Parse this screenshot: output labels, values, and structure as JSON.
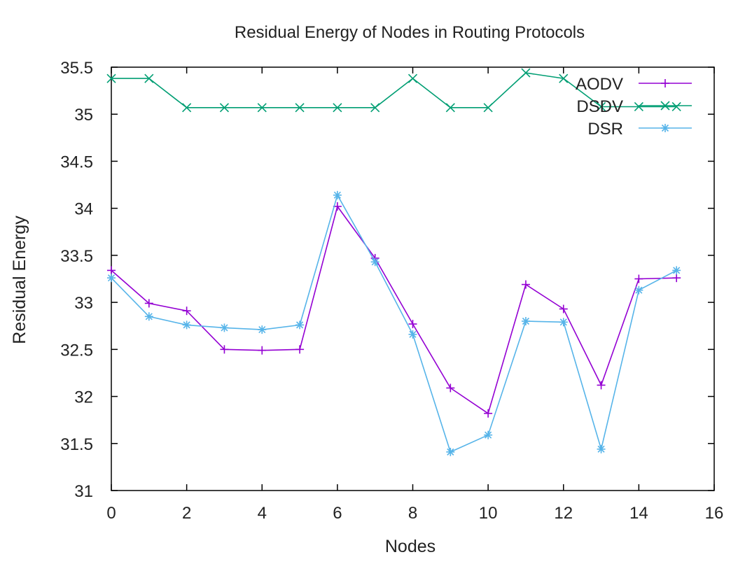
{
  "chart_data": {
    "type": "line",
    "title": "Residual Energy of Nodes in Routing Protocols",
    "xlabel": "Nodes",
    "ylabel": "Residual Energy",
    "xlim": [
      0,
      16
    ],
    "ylim": [
      31,
      35.5
    ],
    "x_ticks": [
      "0",
      "2",
      "4",
      "6",
      "8",
      "10",
      "12",
      "14",
      "16"
    ],
    "y_ticks": [
      "31",
      "31.5",
      "32",
      "32.5",
      "33",
      "33.5",
      "34",
      "34.5",
      "35",
      "35.5"
    ],
    "x_tick_values": [
      0,
      2,
      4,
      6,
      8,
      10,
      12,
      14,
      16
    ],
    "y_tick_values": [
      31,
      31.5,
      32,
      32.5,
      33,
      33.5,
      34,
      34.5,
      35,
      35.5
    ],
    "grid": false,
    "legend_position": "top-right",
    "x": [
      0,
      1,
      2,
      3,
      4,
      5,
      6,
      7,
      8,
      9,
      10,
      11,
      12,
      13,
      14,
      15
    ],
    "series": [
      {
        "name": "AODV",
        "color": "#9400d3",
        "marker": "plus",
        "values": [
          33.34,
          32.99,
          32.91,
          32.5,
          32.49,
          32.5,
          34.02,
          33.47,
          32.77,
          32.09,
          31.82,
          33.19,
          32.93,
          32.12,
          33.25,
          33.26
        ]
      },
      {
        "name": "DSDV",
        "color": "#009e73",
        "marker": "x",
        "values": [
          35.38,
          35.38,
          35.07,
          35.07,
          35.07,
          35.07,
          35.07,
          35.07,
          35.38,
          35.07,
          35.07,
          35.44,
          35.38,
          35.08,
          35.08,
          35.08
        ]
      },
      {
        "name": "DSR",
        "color": "#56b4e9",
        "marker": "star",
        "values": [
          33.26,
          32.85,
          32.76,
          32.73,
          32.71,
          32.76,
          34.14,
          33.43,
          32.66,
          31.41,
          31.59,
          32.8,
          32.79,
          31.44,
          33.13,
          33.34
        ]
      }
    ]
  }
}
